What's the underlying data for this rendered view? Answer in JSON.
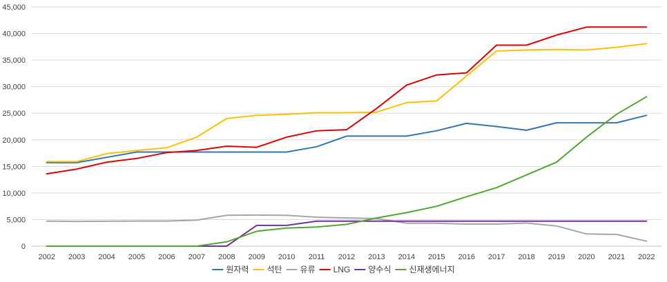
{
  "chart_data": {
    "type": "line",
    "title": "",
    "xlabel": "",
    "ylabel": "",
    "ylim": [
      0,
      45000
    ],
    "ytick_values": [
      0,
      5000,
      10000,
      15000,
      20000,
      25000,
      30000,
      35000,
      40000,
      45000
    ],
    "ytick_labels": [
      "0",
      "5,000",
      "10,000",
      "15,000",
      "20,000",
      "25,000",
      "30,000",
      "35,000",
      "40,000",
      "45,000"
    ],
    "grid": "horizontal",
    "legend_position": "bottom",
    "categories": [
      "2002",
      "2003",
      "2004",
      "2005",
      "2006",
      "2007",
      "2008",
      "2009",
      "2010",
      "2011",
      "2012",
      "2013",
      "2014",
      "2015",
      "2016",
      "2017",
      "2018",
      "2019",
      "2020",
      "2021",
      "2022"
    ],
    "series": [
      {
        "name": "원자력",
        "color": "#2e75b6",
        "values": [
          15700,
          15700,
          16700,
          17700,
          17700,
          17700,
          17700,
          17700,
          17700,
          18700,
          20700,
          20700,
          20700,
          21700,
          23100,
          22500,
          21800,
          23200,
          23200,
          23200,
          24600
        ]
      },
      {
        "name": "석탄",
        "color": "#ffc000",
        "values": [
          15900,
          15900,
          17400,
          18000,
          18500,
          20500,
          24000,
          24600,
          24800,
          25100,
          25100,
          25200,
          27000,
          27300,
          32000,
          36700,
          36900,
          37000,
          36900,
          37400,
          38100
        ]
      },
      {
        "name": "유류",
        "color": "#a5a5a5",
        "values": [
          4700,
          4650,
          4680,
          4720,
          4720,
          4900,
          5800,
          5850,
          5800,
          5450,
          5300,
          5200,
          4300,
          4300,
          4150,
          4150,
          4350,
          3800,
          2300,
          2200,
          950
        ]
      },
      {
        "name": "LNG",
        "color": "#e00000",
        "values": [
          13600,
          14500,
          15800,
          16500,
          17600,
          18000,
          18800,
          18600,
          20500,
          21700,
          21900,
          25900,
          30300,
          32200,
          32600,
          37800,
          37800,
          39700,
          41200,
          41200,
          41200
        ]
      },
      {
        "name": "양수식",
        "color": "#7030a0",
        "values": [
          0,
          0,
          0,
          0,
          0,
          0,
          0,
          3900,
          3900,
          4700,
          4700,
          4700,
          4700,
          4700,
          4700,
          4700,
          4700,
          4700,
          4700,
          4700,
          4700
        ]
      },
      {
        "name": "신재생에너지",
        "color": "#4ea72e",
        "values": [
          0,
          0,
          0,
          0,
          0,
          0,
          800,
          2800,
          3400,
          3600,
          4100,
          5300,
          6300,
          7500,
          9300,
          11000,
          13400,
          15800,
          20500,
          24800,
          28100
        ]
      }
    ]
  }
}
